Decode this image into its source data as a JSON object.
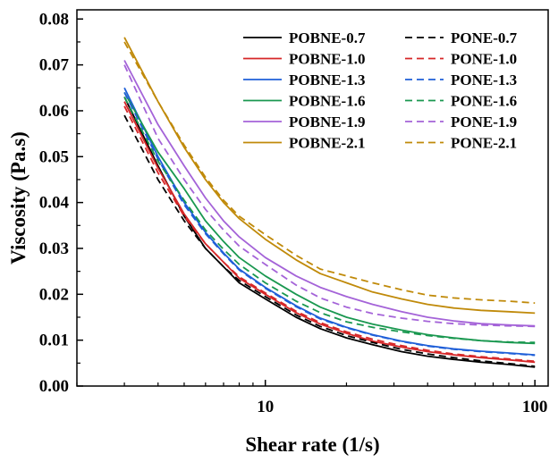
{
  "chart_data": {
    "type": "line",
    "title": "",
    "xlabel": "Shear rate (1/s)",
    "ylabel": "Viscosity (Pa.s)",
    "xscale": "log",
    "xlim": [
      2,
      112
    ],
    "ylim": [
      0,
      0.082
    ],
    "grid": false,
    "legend_position": "top-right",
    "x_tick_labels": [
      "10",
      "100"
    ],
    "y_tick_labels": [
      "0.00",
      "0.01",
      "0.02",
      "0.03",
      "0.04",
      "0.05",
      "0.06",
      "0.07",
      "0.08"
    ],
    "x": [
      3,
      4,
      5,
      6,
      7,
      8,
      10,
      13,
      16,
      20,
      25,
      32,
      40,
      50,
      63,
      80,
      100
    ],
    "series": [
      {
        "name": "POBNE-0.7",
        "style": "solid",
        "color": "#000000",
        "values": [
          0.063,
          0.048,
          0.037,
          0.03,
          0.026,
          0.0225,
          0.019,
          0.015,
          0.0125,
          0.0105,
          0.009,
          0.0075,
          0.0065,
          0.0058,
          0.0052,
          0.0047,
          0.0041
        ]
      },
      {
        "name": "POBNE-1.0",
        "style": "solid",
        "color": "#d62728",
        "values": [
          0.062,
          0.0475,
          0.0375,
          0.031,
          0.027,
          0.0235,
          0.02,
          0.016,
          0.0135,
          0.0115,
          0.0098,
          0.0085,
          0.0075,
          0.0068,
          0.0062,
          0.0057,
          0.0052
        ]
      },
      {
        "name": "POBNE-1.3",
        "style": "solid",
        "color": "#1f5fd8",
        "values": [
          0.065,
          0.05,
          0.04,
          0.0335,
          0.029,
          0.0255,
          0.0215,
          0.0175,
          0.0148,
          0.0128,
          0.0112,
          0.0098,
          0.0088,
          0.0081,
          0.0076,
          0.0072,
          0.0068
        ]
      },
      {
        "name": "POBNE-1.6",
        "style": "solid",
        "color": "#1a9850",
        "values": [
          0.064,
          0.051,
          0.043,
          0.036,
          0.0315,
          0.028,
          0.024,
          0.02,
          0.0172,
          0.015,
          0.0135,
          0.0122,
          0.0112,
          0.0105,
          0.0099,
          0.0095,
          0.0093
        ]
      },
      {
        "name": "POBNE-1.9",
        "style": "solid",
        "color": "#a463d8",
        "values": [
          0.071,
          0.057,
          0.048,
          0.041,
          0.036,
          0.0325,
          0.028,
          0.024,
          0.0215,
          0.0195,
          0.0178,
          0.0162,
          0.015,
          0.0142,
          0.0136,
          0.0133,
          0.0131
        ]
      },
      {
        "name": "POBNE-2.1",
        "style": "solid",
        "color": "#c08a0a",
        "values": [
          0.076,
          0.062,
          0.052,
          0.045,
          0.04,
          0.0365,
          0.032,
          0.0275,
          0.0245,
          0.0225,
          0.0205,
          0.019,
          0.0178,
          0.017,
          0.0165,
          0.0162,
          0.0159
        ]
      },
      {
        "name": "PONE-0.7",
        "style": "dashed",
        "color": "#000000",
        "values": [
          0.059,
          0.045,
          0.036,
          0.03,
          0.026,
          0.023,
          0.0195,
          0.0155,
          0.013,
          0.011,
          0.0095,
          0.008,
          0.007,
          0.0062,
          0.0055,
          0.0049,
          0.0043
        ]
      },
      {
        "name": "PONE-1.0",
        "style": "dashed",
        "color": "#d62728",
        "values": [
          0.061,
          0.0465,
          0.037,
          0.031,
          0.027,
          0.0238,
          0.0203,
          0.0163,
          0.0138,
          0.0118,
          0.0102,
          0.0088,
          0.0078,
          0.007,
          0.0064,
          0.0059,
          0.0054
        ]
      },
      {
        "name": "PONE-1.3",
        "style": "dashed",
        "color": "#1f5fd8",
        "values": [
          0.064,
          0.0495,
          0.0395,
          0.0332,
          0.0288,
          0.0253,
          0.0213,
          0.0173,
          0.0146,
          0.0127,
          0.0111,
          0.0097,
          0.0087,
          0.008,
          0.0075,
          0.0071,
          0.0067
        ]
      },
      {
        "name": "PONE-1.6",
        "style": "dashed",
        "color": "#1a9850",
        "values": [
          0.063,
          0.049,
          0.0405,
          0.034,
          0.0298,
          0.0265,
          0.0225,
          0.0185,
          0.016,
          0.014,
          0.0128,
          0.0118,
          0.011,
          0.0104,
          0.0099,
          0.0096,
          0.0095
        ]
      },
      {
        "name": "PONE-1.9",
        "style": "dashed",
        "color": "#a463d8",
        "values": [
          0.07,
          0.054,
          0.045,
          0.0385,
          0.034,
          0.0305,
          0.0265,
          0.022,
          0.0192,
          0.0172,
          0.0158,
          0.0148,
          0.0141,
          0.0136,
          0.0133,
          0.0131,
          0.013
        ]
      },
      {
        "name": "PONE-2.1",
        "style": "dashed",
        "color": "#c08a0a",
        "values": [
          0.075,
          0.062,
          0.0525,
          0.0455,
          0.0405,
          0.037,
          0.033,
          0.0285,
          0.0255,
          0.024,
          0.0225,
          0.021,
          0.0198,
          0.0192,
          0.0188,
          0.0185,
          0.0181
        ]
      }
    ]
  }
}
